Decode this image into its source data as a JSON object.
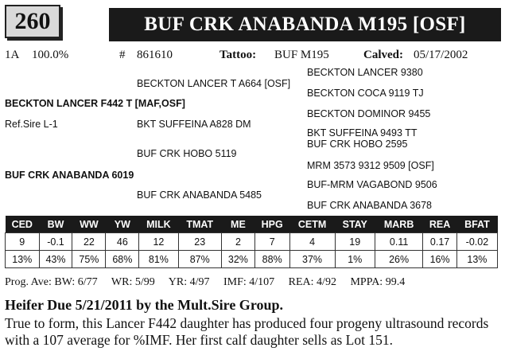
{
  "lot_number": "260",
  "animal_name": "BUF CRK ANABANDA M195 [OSF]",
  "info": {
    "tag": "1A",
    "percent": "100.0%",
    "reg_label": "#",
    "reg_number": "861610",
    "tattoo_label": "Tattoo:",
    "tattoo": "BUF M195",
    "calved_label": "Calved:",
    "calved": "05/17/2002"
  },
  "pedigree": {
    "sire": "BECKTON LANCER F442 T [MAF,OSF]",
    "ref_sire": "Ref.Sire L-1",
    "sire_sire": "BECKTON LANCER T A664 [OSF]",
    "sire_dam": "BKT SUFFEINA A828 DM",
    "ssss": "BECKTON LANCER 9380",
    "sssd": "BECKTON COCA 9119 TJ",
    "sdss": "BECKTON DOMINOR 9455",
    "sdsd": "BKT SUFFEINA 9493 TT",
    "dam": "BUF CRK ANABANDA 6019",
    "dam_sire": "BUF CRK HOBO 5119",
    "dam_dam": "BUF CRK ANABANDA 5485",
    "dsss": "BUF CRK HOBO 2595",
    "dssd": "MRM 3573 9312 9509 [OSF]",
    "ddss": "BUF-MRM VAGABOND 9506",
    "ddsd": "BUF CRK ANABANDA 3678"
  },
  "epd": {
    "headers": [
      "CED",
      "BW",
      "WW",
      "YW",
      "MILK",
      "TMAT",
      "ME",
      "HPG",
      "CETM",
      "STAY",
      "MARB",
      "REA",
      "BFAT"
    ],
    "values": [
      "9",
      "-0.1",
      "22",
      "46",
      "12",
      "23",
      "2",
      "7",
      "4",
      "19",
      "0.11",
      "0.17",
      "-0.02"
    ],
    "percentiles": [
      "13%",
      "43%",
      "75%",
      "68%",
      "81%",
      "87%",
      "32%",
      "88%",
      "37%",
      "1%",
      "26%",
      "16%",
      "13%"
    ]
  },
  "progeny": {
    "bw": "Prog. Ave: BW: 6/77",
    "wr": "WR: 5/99",
    "yr": "YR: 4/97",
    "imf": "IMF: 4/107",
    "rea": "REA: 4/92",
    "mppa": "MPPA: 99.4"
  },
  "heifer_note": "Heifer Due 5/21/2011 by the Mult.Sire Group.",
  "description": "True to form, this Lancer F442 daughter has produced four progeny ultrasound records with a 107 average for %IMF.  Her first calf daughter sells as Lot 151."
}
